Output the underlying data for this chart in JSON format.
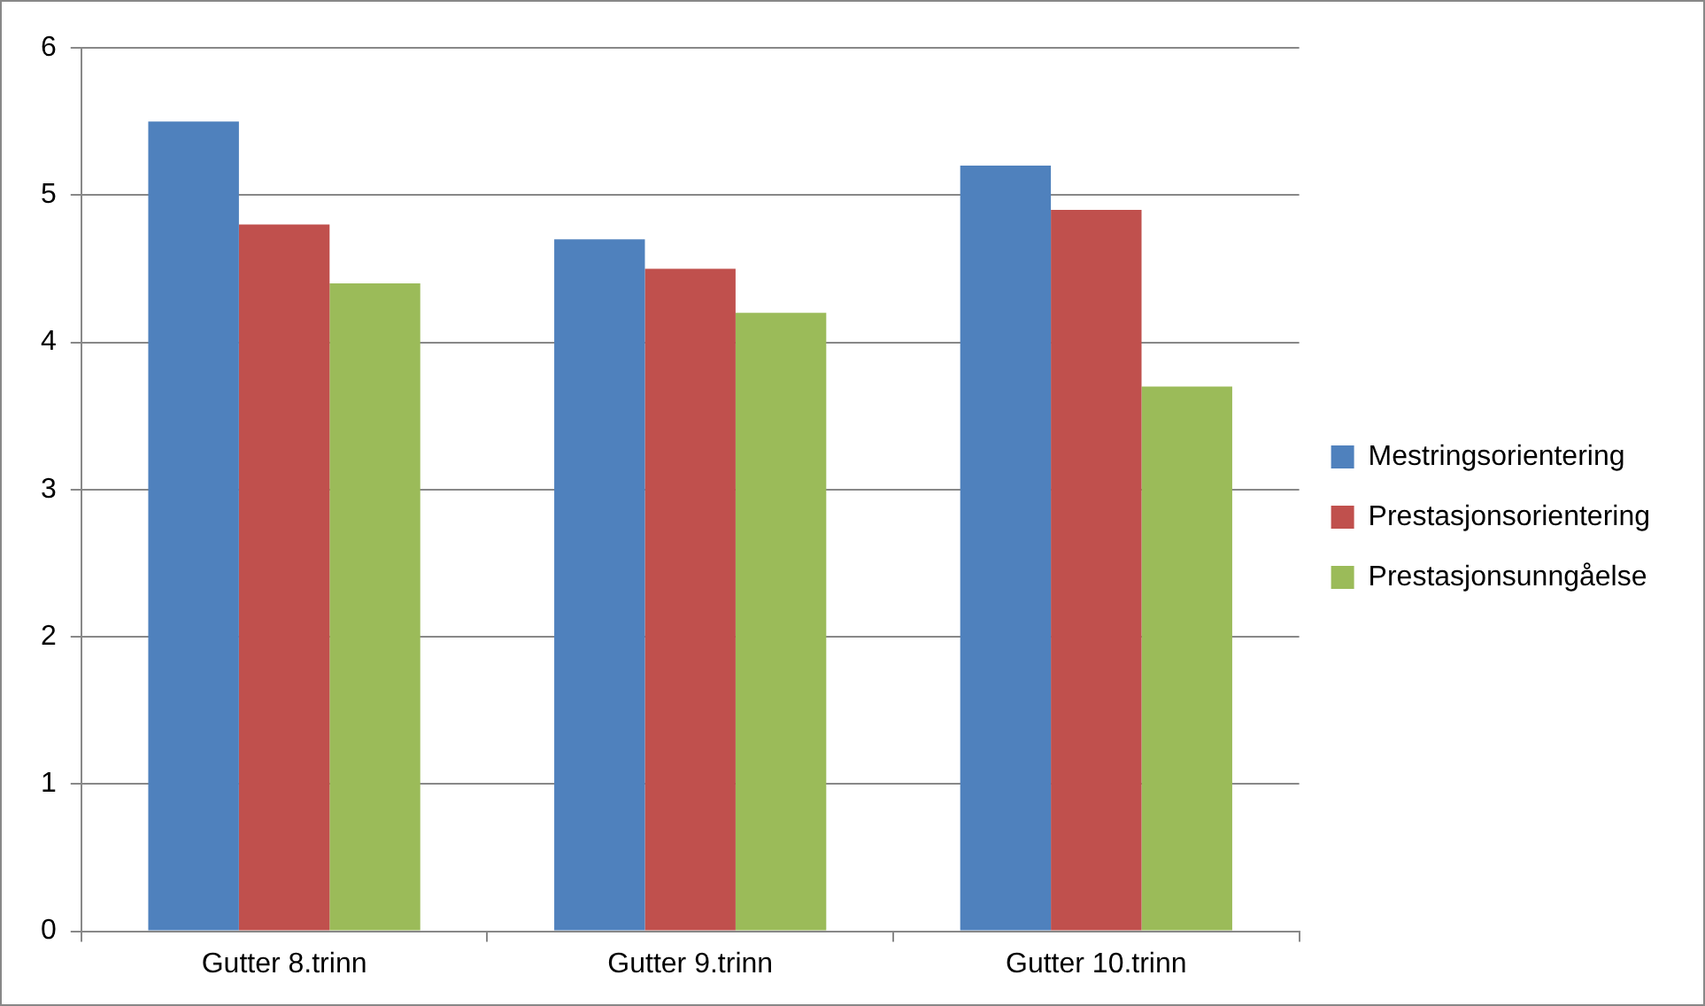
{
  "chart_data": {
    "type": "bar",
    "categories": [
      "Gutter 8.trinn",
      "Gutter 9.trinn",
      "Gutter 10.trinn"
    ],
    "series": [
      {
        "name": "Mestringsorientering",
        "color": "#4f81bd",
        "values": [
          5.5,
          4.7,
          5.2
        ]
      },
      {
        "name": "Prestasjonsorientering",
        "color": "#c0504d",
        "values": [
          4.8,
          4.5,
          4.9
        ]
      },
      {
        "name": "Prestasjonsunngåelse",
        "color": "#9bbb59",
        "values": [
          4.4,
          4.2,
          3.7
        ]
      }
    ],
    "ylim": [
      0,
      6
    ],
    "yticks": [
      0,
      1,
      2,
      3,
      4,
      5,
      6
    ],
    "grid": "y",
    "legend": "right"
  }
}
